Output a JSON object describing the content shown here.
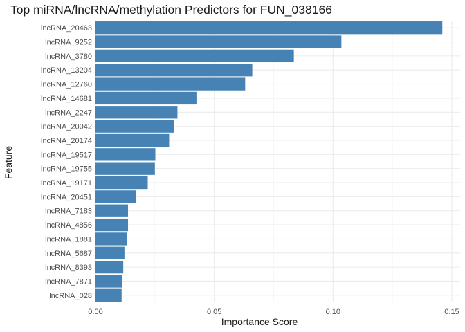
{
  "chart_data": {
    "type": "bar",
    "orientation": "horizontal",
    "title": "Top miRNA/lncRNA/methylation Predictors for FUN_038166",
    "xlabel": "Importance Score",
    "ylabel": "Feature",
    "xlim": [
      0,
      0.1535
    ],
    "xticks": [
      0.0,
      0.05,
      0.1,
      0.15
    ],
    "xtick_labels": [
      "0.00",
      "0.05",
      "0.10",
      "0.15"
    ],
    "grid": true,
    "bar_color": "#4682B4",
    "categories": [
      "lncRNA_20463",
      "lncRNA_9252",
      "lncRNA_3780",
      "lncRNA_13204",
      "lncRNA_12760",
      "lncRNA_14681",
      "lncRNA_2247",
      "lncRNA_20042",
      "lncRNA_20174",
      "lncRNA_19517",
      "lncRNA_19755",
      "lncRNA_19171",
      "lncRNA_20451",
      "lncRNA_7183",
      "lncRNA_4856",
      "lncRNA_1881",
      "lncRNA_5687",
      "lncRNA_8393",
      "lncRNA_7871",
      "lncRNA_028"
    ],
    "values": [
      0.146,
      0.1035,
      0.0835,
      0.066,
      0.063,
      0.0425,
      0.0345,
      0.033,
      0.031,
      0.0252,
      0.025,
      0.022,
      0.017,
      0.0137,
      0.0137,
      0.0133,
      0.0122,
      0.0117,
      0.0113,
      0.011
    ]
  }
}
